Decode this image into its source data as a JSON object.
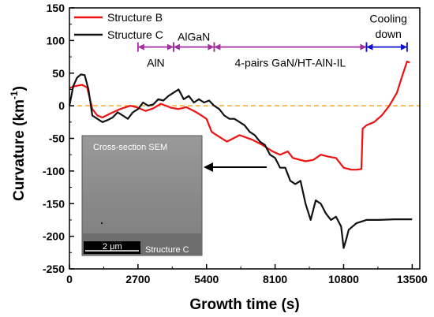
{
  "chart_data": {
    "type": "line",
    "xlabel": "Growth time (s)",
    "ylabel": "Curvature (km",
    "ylabel_sup": "-1",
    "ylabel_close": ")",
    "xlim": [
      0,
      13800
    ],
    "ylim": [
      -250,
      150
    ],
    "xticks": [
      0,
      2700,
      5400,
      8100,
      10800,
      13500
    ],
    "yticks": [
      150,
      100,
      50,
      0,
      -50,
      -100,
      -150,
      -200,
      -250
    ],
    "zero_line": {
      "y": 0,
      "color": "#f5a623",
      "style": "dashed"
    },
    "legend_position": "top-left",
    "series": [
      {
        "name": "Structure B",
        "color": "#ee1111",
        "x": [
          0,
          200,
          500,
          700,
          900,
          1100,
          1300,
          1600,
          2000,
          2400,
          2700,
          3000,
          3300,
          3600,
          4000,
          4300,
          4600,
          5000,
          5400,
          5600,
          5800,
          6200,
          6700,
          7200,
          7600,
          8000,
          8300,
          8600,
          8800,
          9000,
          9300,
          9600,
          9900,
          10200,
          10500,
          10800,
          11100,
          11300,
          11500,
          11550,
          11700,
          12000,
          12300,
          12600,
          12900,
          13100,
          13300,
          13400
        ],
        "y": [
          27,
          30,
          32,
          28,
          -5,
          -15,
          -18,
          -12,
          -5,
          0,
          -3,
          -8,
          -4,
          3,
          -3,
          -5,
          -2,
          -10,
          -20,
          -40,
          -45,
          -55,
          -45,
          -52,
          -60,
          -70,
          -75,
          -70,
          -80,
          -82,
          -85,
          -83,
          -75,
          -78,
          -80,
          -95,
          -98,
          -98,
          -97,
          -35,
          -30,
          -25,
          -15,
          0,
          20,
          45,
          68,
          66
        ]
      },
      {
        "name": "Structure C",
        "color": "#111111",
        "x": [
          0,
          150,
          300,
          450,
          600,
          750,
          900,
          1100,
          1300,
          1500,
          1700,
          1900,
          2100,
          2300,
          2500,
          2700,
          2900,
          3100,
          3300,
          3500,
          3700,
          3900,
          4100,
          4300,
          4500,
          4700,
          4900,
          5100,
          5300,
          5500,
          5700,
          5900,
          6100,
          6300,
          6500,
          6700,
          6900,
          7100,
          7300,
          7500,
          7700,
          7900,
          8100,
          8300,
          8500,
          8700,
          8900,
          9100,
          9300,
          9500,
          9700,
          9900,
          10100,
          10300,
          10500,
          10700,
          10800,
          10900,
          11000,
          11300,
          11700,
          12200,
          12800,
          13500
        ],
        "y": [
          0,
          30,
          43,
          48,
          47,
          25,
          -15,
          -20,
          -25,
          -22,
          -18,
          -10,
          -15,
          -20,
          -10,
          -5,
          5,
          0,
          2,
          10,
          8,
          15,
          20,
          25,
          10,
          15,
          5,
          10,
          5,
          8,
          0,
          -5,
          -15,
          -20,
          -20,
          -25,
          -30,
          -40,
          -45,
          -55,
          -60,
          -75,
          -80,
          -95,
          -95,
          -115,
          -120,
          -115,
          -150,
          -175,
          -145,
          -150,
          -165,
          -175,
          -170,
          -185,
          -218,
          -205,
          -190,
          -180,
          -175,
          -175,
          -174,
          -174
        ]
      }
    ],
    "annotations": {
      "stage_arrow_color": "#a0309f",
      "cooling_arrow_color": "#1010cc",
      "stages": [
        {
          "label": "AlN",
          "x_start": 2700,
          "x_end": 4100
        },
        {
          "label": "AlGaN",
          "x_start": 4100,
          "x_end": 5700
        },
        {
          "label": "4-pairs GaN/HT-AlN-IL",
          "x_start": 5700,
          "x_end": 11700
        }
      ],
      "cooling": {
        "label_line1": "Cooling",
        "label_line2": "down",
        "x_start": 11700,
        "x_end": 13300
      }
    },
    "inset": {
      "title": "Cross-section SEM",
      "scale_bar": "2 μm",
      "caption": "Structure C"
    }
  }
}
